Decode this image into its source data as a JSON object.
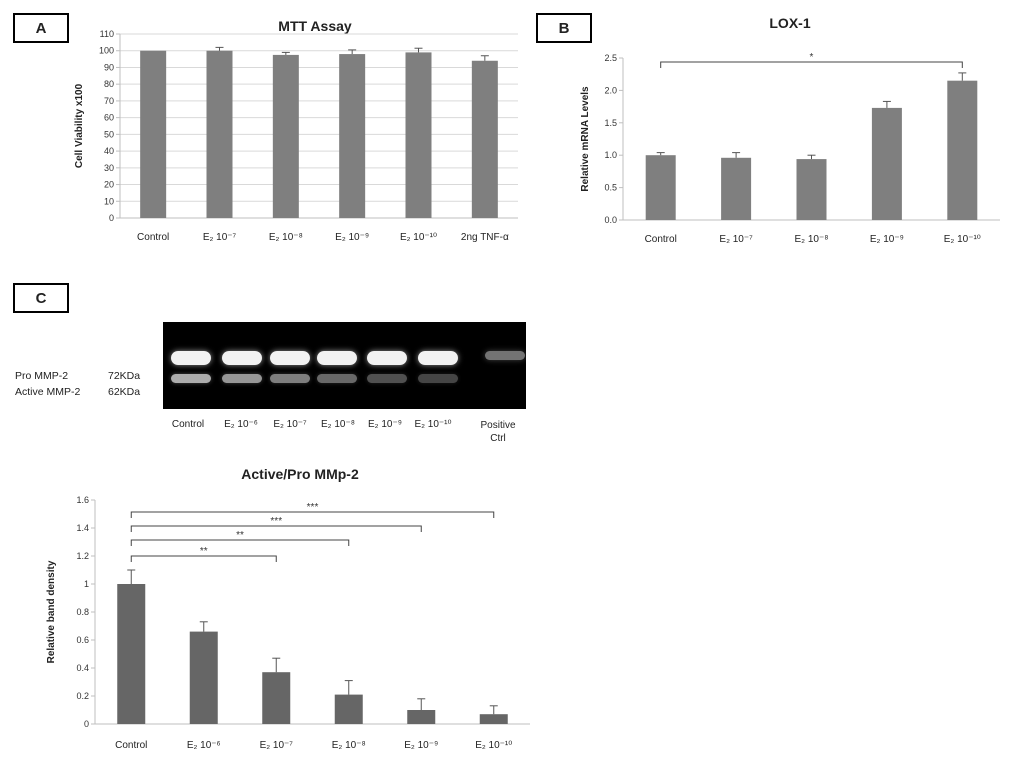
{
  "panels": {
    "a": "A",
    "b": "B",
    "c": "C"
  },
  "gel": {
    "lanes": [
      "Control",
      "E₂ 10⁻⁶",
      "E₂ 10⁻⁷",
      "E₂ 10⁻⁸",
      "E₂ 10⁻⁹",
      "E₂ 10⁻¹⁰"
    ],
    "positive_line1": "Positive",
    "positive_line2": "Ctrl",
    "pro_label": "Pro MMP-2",
    "pro_kda": "72KDa",
    "active_label": "Active MMP-2",
    "active_kda": "62KDa",
    "pro_intensity": [
      0.95,
      0.95,
      0.95,
      0.95,
      0.95,
      0.95,
      0.45
    ],
    "active_intensity": [
      0.75,
      0.65,
      0.55,
      0.45,
      0.35,
      0.3,
      0.0
    ]
  },
  "colors": {
    "bar": "#7f7f7f",
    "bar_c": "#666666",
    "grid": "#d9d9d9",
    "axis": "#bfbfbf"
  },
  "chart_data": [
    {
      "id": "A",
      "type": "bar",
      "title": "MTT Assay",
      "ylabel": "Cell Viability x100",
      "ylim": [
        0,
        110
      ],
      "yticks": [
        0,
        10,
        20,
        30,
        40,
        50,
        60,
        70,
        80,
        90,
        100,
        110
      ],
      "grid": true,
      "categories": [
        "Control",
        "E₂ 10⁻⁷",
        "E₂ 10⁻⁸",
        "E₂ 10⁻⁹",
        "E₂ 10⁻¹⁰",
        "2ng TNF-α"
      ],
      "values": [
        100,
        100,
        97.5,
        98,
        99,
        94
      ],
      "errors": [
        0,
        2,
        1.5,
        2.5,
        2.5,
        3
      ]
    },
    {
      "id": "B",
      "type": "bar",
      "title": "LOX-1",
      "ylabel": "Relative mRNA Levels",
      "ylim": [
        0,
        2.5
      ],
      "yticks": [
        "0.0",
        "0.5",
        "1.0",
        "1.5",
        "2.0",
        "2.5"
      ],
      "grid": false,
      "categories": [
        "Control",
        "E₂ 10⁻⁷",
        "E₂ 10⁻⁸",
        "E₂ 10⁻⁹",
        "E₂ 10⁻¹⁰"
      ],
      "values": [
        1.0,
        0.96,
        0.94,
        1.73,
        2.15
      ],
      "errors": [
        0.04,
        0.08,
        0.06,
        0.1,
        0.12
      ],
      "significance": [
        {
          "from": 0,
          "to": 4,
          "label": "*"
        }
      ]
    },
    {
      "id": "C",
      "type": "bar",
      "title": "Active/Pro MMp-2",
      "ylabel": "Relative band density",
      "ylim": [
        0,
        1.6
      ],
      "yticks": [
        "0",
        "0.2",
        "0.4",
        "0.6",
        "0.8",
        "1",
        "1.2",
        "1.4",
        "1.6"
      ],
      "grid": false,
      "categories": [
        "Control",
        "E₂ 10⁻⁶",
        "E₂ 10⁻⁷",
        "E₂ 10⁻⁸",
        "E₂ 10⁻⁹",
        "E₂ 10⁻¹⁰"
      ],
      "values": [
        1.0,
        0.66,
        0.37,
        0.21,
        0.1,
        0.07
      ],
      "errors": [
        0.1,
        0.07,
        0.1,
        0.1,
        0.08,
        0.06
      ],
      "significance": [
        {
          "from": 0,
          "to": 2,
          "label": "**"
        },
        {
          "from": 0,
          "to": 3,
          "label": "**"
        },
        {
          "from": 0,
          "to": 4,
          "label": "***"
        },
        {
          "from": 0,
          "to": 5,
          "label": "***"
        }
      ]
    }
  ]
}
